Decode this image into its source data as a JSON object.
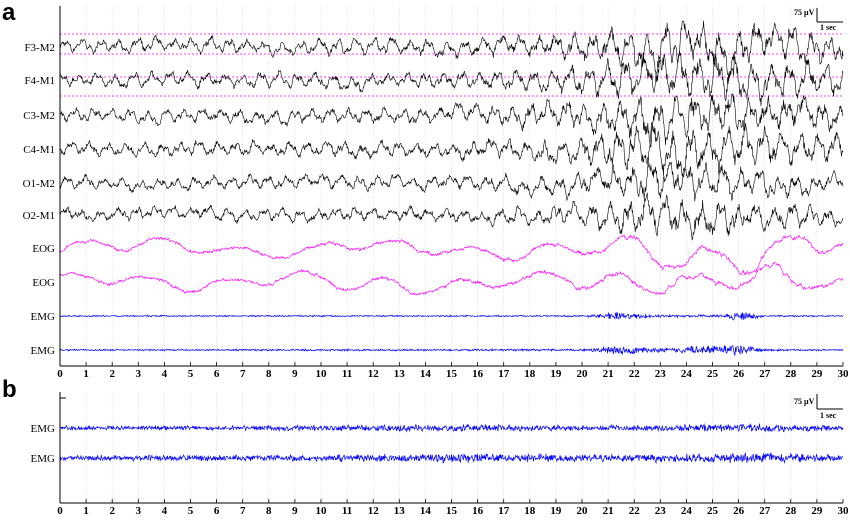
{
  "chart_data": [
    {
      "type": "line",
      "panel": "a",
      "xlim": [
        0,
        30
      ],
      "x_ticks": [
        "0",
        "1",
        "2",
        "3",
        "4",
        "5",
        "6",
        "7",
        "8",
        "9",
        "10",
        "11",
        "12",
        "13",
        "14",
        "15",
        "16",
        "17",
        "18",
        "19",
        "20",
        "21",
        "22",
        "23",
        "24",
        "25",
        "26",
        "27",
        "28",
        "29",
        "30"
      ],
      "grid": "vertical dotted at each second",
      "scale_bar": {
        "amplitude": "75 µV",
        "time": "1 sec"
      },
      "channels": [
        {
          "label": "F3-M2",
          "color": "#000000",
          "kind": "eeg",
          "envelope": [
            [
              0,
              1.0
            ],
            [
              15,
              1.2
            ],
            [
              20,
              2.0
            ],
            [
              23,
              3.5
            ],
            [
              30,
              2.2
            ]
          ]
        },
        {
          "label": "F4-M1",
          "color": "#000000",
          "kind": "eeg",
          "envelope": [
            [
              0,
              1.0
            ],
            [
              15,
              1.2
            ],
            [
              20,
              2.0
            ],
            [
              23,
              3.5
            ],
            [
              30,
              2.2
            ]
          ]
        },
        {
          "label": "C3-M2",
          "color": "#000000",
          "kind": "eeg",
          "envelope": [
            [
              0,
              1.0
            ],
            [
              15,
              1.2
            ],
            [
              20,
              2.0
            ],
            [
              23,
              3.5
            ],
            [
              30,
              2.2
            ]
          ]
        },
        {
          "label": "C4-M1",
          "color": "#000000",
          "kind": "eeg",
          "envelope": [
            [
              0,
              1.0
            ],
            [
              15,
              1.2
            ],
            [
              20,
              2.0
            ],
            [
              23,
              3.5
            ],
            [
              30,
              2.2
            ]
          ]
        },
        {
          "label": "O1-M2",
          "color": "#000000",
          "kind": "eeg",
          "envelope": [
            [
              0,
              1.0
            ],
            [
              15,
              1.0
            ],
            [
              20,
              1.6
            ],
            [
              23,
              3.0
            ],
            [
              30,
              1.2
            ]
          ]
        },
        {
          "label": "O2-M1",
          "color": "#000000",
          "kind": "eeg",
          "envelope": [
            [
              0,
              1.0
            ],
            [
              15,
              1.0
            ],
            [
              20,
              1.6
            ],
            [
              23,
              3.0
            ],
            [
              30,
              1.2
            ]
          ]
        },
        {
          "label": "EOG",
          "color": "#ff00ff",
          "kind": "eog",
          "envelope": [
            [
              0,
              1.0
            ],
            [
              18,
              1.2
            ],
            [
              22,
              2.0
            ],
            [
              27,
              2.5
            ],
            [
              30,
              1.5
            ]
          ]
        },
        {
          "label": "EOG",
          "color": "#ff00ff",
          "kind": "eog",
          "envelope": [
            [
              0,
              1.0
            ],
            [
              18,
              1.2
            ],
            [
              22,
              2.0
            ],
            [
              27,
              2.5
            ],
            [
              30,
              1.5
            ]
          ]
        },
        {
          "label": "EMG",
          "color": "#0000ff",
          "kind": "emg",
          "envelope": [
            [
              0,
              0.25
            ],
            [
              20,
              0.3
            ],
            [
              21.5,
              1.5
            ],
            [
              23,
              0.5
            ],
            [
              25.5,
              0.6
            ],
            [
              26,
              2.0
            ],
            [
              27,
              0.3
            ],
            [
              30,
              0.25
            ]
          ]
        },
        {
          "label": "EMG",
          "color": "#0000ff",
          "kind": "emg",
          "envelope": [
            [
              0,
              0.3
            ],
            [
              20,
              0.4
            ],
            [
              21.5,
              1.8
            ],
            [
              23,
              0.8
            ],
            [
              24.5,
              1.5
            ],
            [
              26,
              2.5
            ],
            [
              27,
              0.4
            ],
            [
              30,
              0.3
            ]
          ]
        }
      ],
      "reference_lines": {
        "color": "#ff00ff",
        "style": "dotted",
        "count": 4
      }
    },
    {
      "type": "line",
      "panel": "b",
      "xlim": [
        0,
        30
      ],
      "x_ticks": [
        "0",
        "1",
        "2",
        "3",
        "4",
        "5",
        "6",
        "7",
        "8",
        "9",
        "10",
        "11",
        "12",
        "13",
        "14",
        "15",
        "16",
        "17",
        "18",
        "19",
        "20",
        "21",
        "22",
        "23",
        "24",
        "25",
        "26",
        "27",
        "28",
        "29",
        "30"
      ],
      "grid": "vertical dotted at each second",
      "scale_bar": {
        "amplitude": "75 µV",
        "time": "1 sec"
      },
      "channels": [
        {
          "label": "EMG",
          "color": "#0000ff",
          "kind": "emg",
          "envelope": [
            [
              0,
              0.8
            ],
            [
              10,
              1.0
            ],
            [
              16,
              1.3
            ],
            [
              20,
              1.0
            ],
            [
              27,
              1.6
            ],
            [
              30,
              0.9
            ]
          ]
        },
        {
          "label": "EMG",
          "color": "#0000ff",
          "kind": "emg",
          "envelope": [
            [
              0,
              1.0
            ],
            [
              10,
              1.3
            ],
            [
              16,
              1.8
            ],
            [
              20,
              1.4
            ],
            [
              27,
              2.0
            ],
            [
              30,
              1.2
            ]
          ]
        }
      ]
    }
  ]
}
